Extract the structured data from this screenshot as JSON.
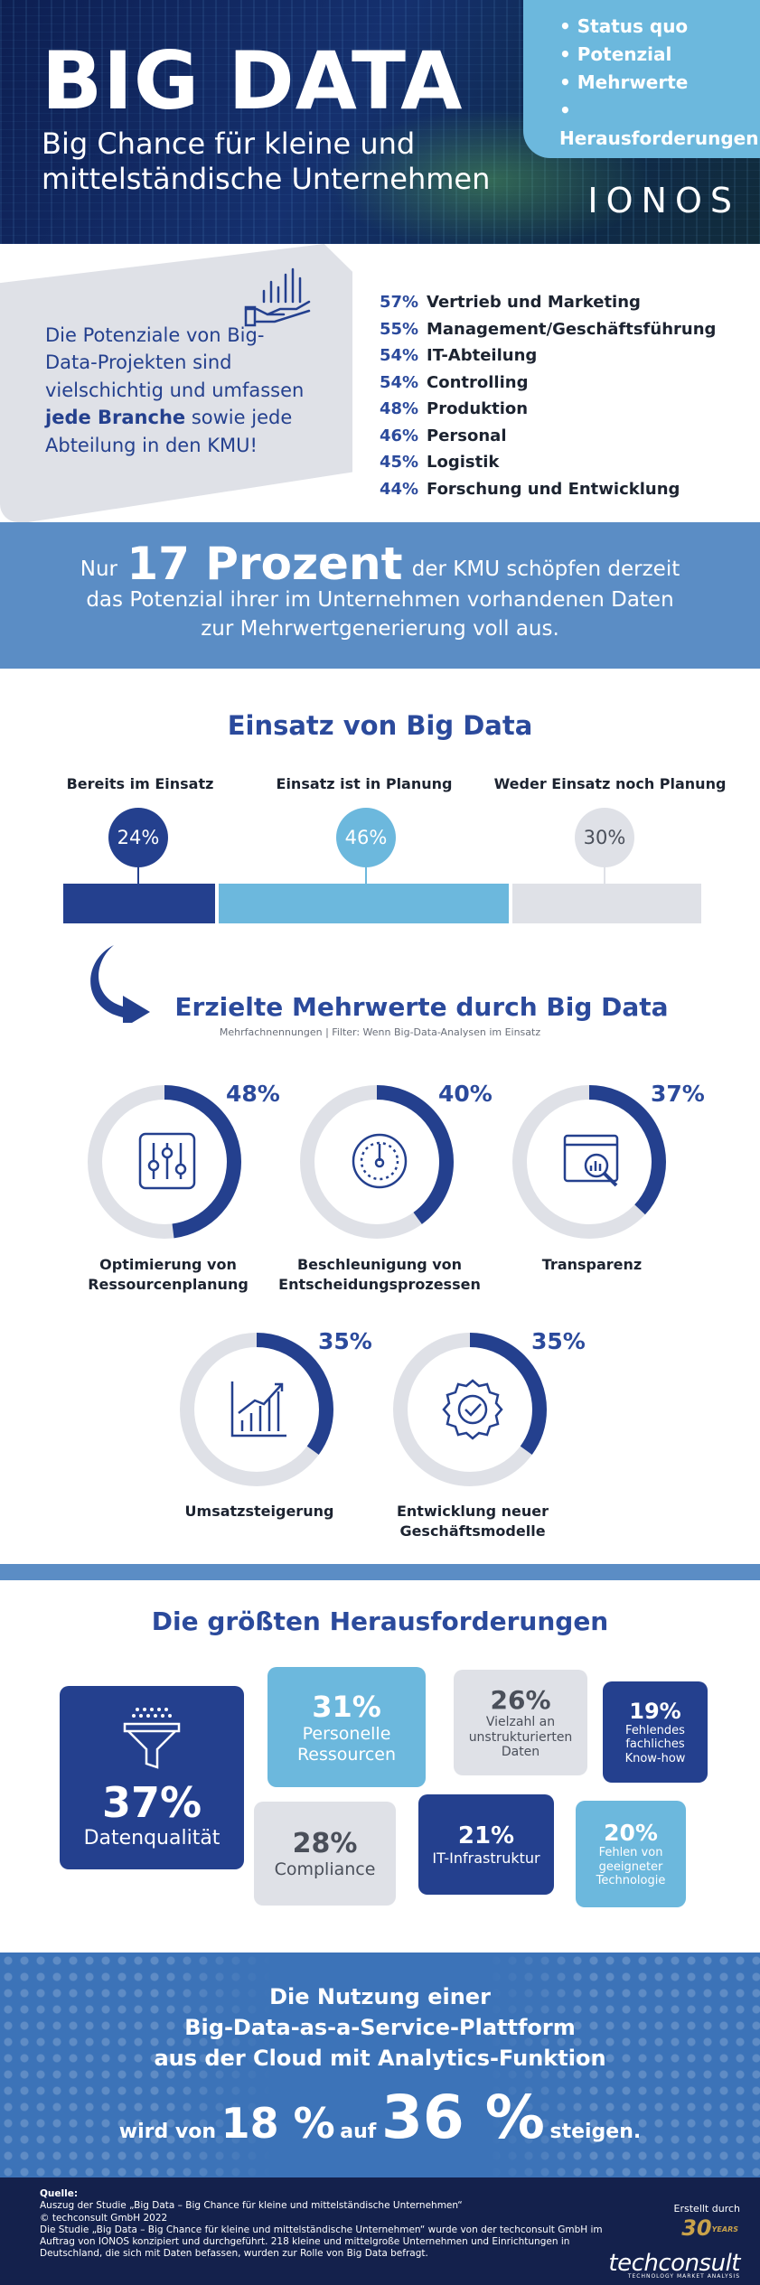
{
  "header": {
    "title": "BIG DATA",
    "subtitle_line1": "Big Chance für kleine und",
    "subtitle_line2": "mittelständische Unternehmen",
    "topics": [
      "• Status quo",
      "• Potenzial",
      "• Mehrwerte",
      "• Herausforderungen"
    ],
    "logo": "IONOS"
  },
  "departments": {
    "intro_1": "Die Potenziale von Big-Data-Projekten sind vielschichtig und umfassen",
    "intro_bold": "jede Branche",
    "intro_2": "sowie jede Abteilung in den KMU!",
    "items": [
      {
        "pct": "57%",
        "label": "Vertrieb und Marketing"
      },
      {
        "pct": "55%",
        "label": "Management/Geschäftsführung"
      },
      {
        "pct": "54%",
        "label": "IT-Abteilung"
      },
      {
        "pct": "54%",
        "label": "Controlling"
      },
      {
        "pct": "48%",
        "label": "Produktion"
      },
      {
        "pct": "46%",
        "label": "Personal"
      },
      {
        "pct": "45%",
        "label": "Logistik"
      },
      {
        "pct": "44%",
        "label": "Forschung und Entwicklung"
      }
    ]
  },
  "band": {
    "pre": "Nur",
    "big": "17 Prozent",
    "post": "der KMU schöpfen derzeit",
    "line2": "das Potenzial ihrer im Unternehmen vorhandenen Daten",
    "line3": "zur Mehrwertgenerierung voll aus."
  },
  "einsatz": {
    "title": "Einsatz von Big Data",
    "items": [
      {
        "label": "Bereits im Einsatz",
        "pct": "24%",
        "value": 24,
        "color": "#24408e"
      },
      {
        "label": "Einsatz ist in Planung",
        "pct": "46%",
        "value": 46,
        "color": "#6cb8dd"
      },
      {
        "label": "Weder Einsatz noch Planung",
        "pct": "30%",
        "value": 30,
        "color": "#dfe1e7"
      }
    ]
  },
  "mehrwerte": {
    "title": "Erzielte Mehrwerte durch Big Data",
    "note": "Mehrfachnennungen | Filter: Wenn Big-Data-Analysen im Einsatz",
    "items": [
      {
        "pct": "48%",
        "value": 48,
        "label1": "Optimierung von",
        "label2": "Ressourcenplanung",
        "icon": "sliders-icon"
      },
      {
        "pct": "40%",
        "value": 40,
        "label1": "Beschleunigung von",
        "label2": "Entscheidungsprozessen",
        "icon": "gauge-icon"
      },
      {
        "pct": "37%",
        "value": 37,
        "label1": "Transparenz",
        "label2": "",
        "icon": "analytics-window-icon"
      },
      {
        "pct": "35%",
        "value": 35,
        "label1": "Umsatzsteigerung",
        "label2": "",
        "icon": "growth-chart-icon"
      },
      {
        "pct": "35%",
        "value": 35,
        "label1": "Entwicklung neuer",
        "label2": "Geschäftsmodelle",
        "icon": "certified-badge-icon"
      }
    ]
  },
  "herausforderungen": {
    "title": "Die größten Herausforderungen",
    "items": [
      {
        "pct": "37%",
        "label": "Datenqualität"
      },
      {
        "pct": "31%",
        "label": "Personelle Ressourcen"
      },
      {
        "pct": "26%",
        "label": "Vielzahl an unstrukturierten Daten"
      },
      {
        "pct": "19%",
        "label": "Fehlendes fachliches Know-how"
      },
      {
        "pct": "28%",
        "label": "Compliance"
      },
      {
        "pct": "21%",
        "label": "IT-Infrastruktur"
      },
      {
        "pct": "20%",
        "label": "Fehlen von geeigneter Technologie"
      }
    ]
  },
  "baas": {
    "line1": "Die Nutzung einer",
    "line2": "Big-Data-as-a-Service-Plattform",
    "line3": "aus der Cloud mit Analytics-Funktion",
    "pre": "wird von",
    "from": "18 %",
    "mid": "auf",
    "to": "36 %",
    "post": "steigen."
  },
  "footer": {
    "source_label": "Quelle:",
    "source_1": "Auszug der Studie „Big Data – Big Chance für kleine und mittelständische Unternehmen“",
    "source_2": "© techconsult GmbH 2022",
    "source_3": "Die Studie „Big Data – Big Chance für kleine und mittelständische Unternehmen“ wurde von der techconsult GmbH im Auftrag von IONOS konzipiert und durchgeführt. 218 kleine und mittelgroße Unternehmen und Einrichtungen in Deutschland, die sich mit Daten befassen, wurden zur Rolle von Big Data befragt.",
    "made_by": "Erstellt durch",
    "anniv": "30",
    "anniv_small": "YEARS",
    "company": "techconsult",
    "company_sub": "TECHNOLOGY MARKET ANALYSIS"
  }
}
